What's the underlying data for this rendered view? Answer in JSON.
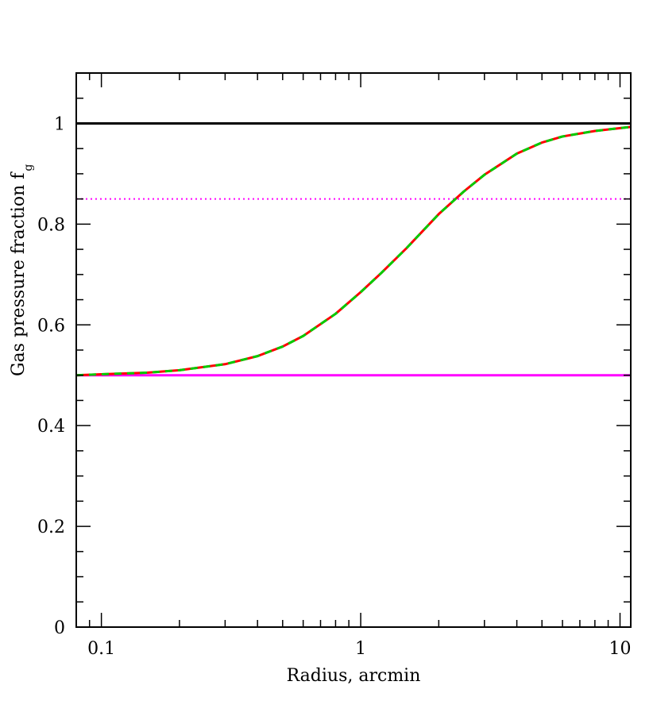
{
  "chart_data": {
    "type": "line",
    "xlabel": "Radius, arcmin",
    "ylabel": "Gas pressure fraction f",
    "ylabel_subscript": "g",
    "xscale": "log",
    "xlim": [
      0.08,
      11
    ],
    "ylim": [
      0,
      1.1
    ],
    "x_ticks": [
      {
        "value": 0.1,
        "label": "0.1"
      },
      {
        "value": 1,
        "label": "1"
      },
      {
        "value": 10,
        "label": "10"
      }
    ],
    "y_ticks": [
      {
        "value": 0,
        "label": "0"
      },
      {
        "value": 0.2,
        "label": "0.2"
      },
      {
        "value": 0.4,
        "label": "0.4"
      },
      {
        "value": 0.6,
        "label": "0.6"
      },
      {
        "value": 0.8,
        "label": "0.8"
      },
      {
        "value": 1,
        "label": "1"
      }
    ],
    "grid": false,
    "legend": "none",
    "series": [
      {
        "style": "solid",
        "color": "#000000",
        "x": [
          0.08,
          11
        ],
        "y": [
          1.0,
          1.0
        ]
      },
      {
        "style": "dotted",
        "color": "#ff00ff",
        "x": [
          0.08,
          11
        ],
        "y": [
          0.85,
          0.85
        ]
      },
      {
        "style": "solid",
        "color": "#ff00ff",
        "x": [
          0.08,
          11
        ],
        "y": [
          0.5,
          0.5
        ]
      },
      {
        "style": "solid",
        "color": "#ff0000",
        "x": [
          0.08,
          0.1,
          0.15,
          0.2,
          0.3,
          0.4,
          0.5,
          0.6,
          0.8,
          1.0,
          1.2,
          1.5,
          2.0,
          2.5,
          3.0,
          4.0,
          5.0,
          6.0,
          8.0,
          11.0
        ],
        "y": [
          0.5,
          0.502,
          0.505,
          0.51,
          0.522,
          0.538,
          0.557,
          0.578,
          0.622,
          0.665,
          0.703,
          0.752,
          0.82,
          0.865,
          0.898,
          0.94,
          0.962,
          0.974,
          0.985,
          0.993
        ]
      },
      {
        "style": "dashed",
        "color": "#00cc00",
        "x": [
          0.08,
          0.1,
          0.15,
          0.2,
          0.3,
          0.4,
          0.5,
          0.6,
          0.8,
          1.0,
          1.2,
          1.5,
          2.0,
          2.5,
          3.0,
          4.0,
          5.0,
          6.0,
          8.0,
          11.0
        ],
        "y": [
          0.5,
          0.502,
          0.505,
          0.51,
          0.522,
          0.538,
          0.557,
          0.578,
          0.622,
          0.665,
          0.703,
          0.752,
          0.82,
          0.865,
          0.898,
          0.94,
          0.962,
          0.974,
          0.985,
          0.993
        ]
      }
    ]
  }
}
